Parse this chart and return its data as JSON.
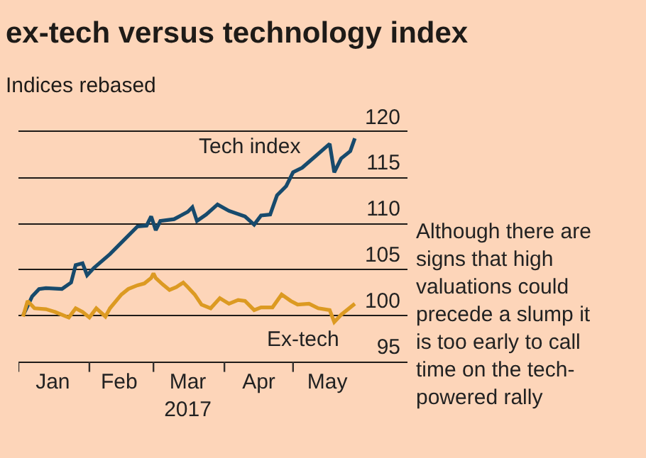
{
  "chart_data": {
    "type": "line",
    "title": "ex-tech versus technology index",
    "subtitle": "Indices rebased",
    "annotations": [
      "Although there are signs that high valuations could precede a slump it is too early to call time on the tech-powered rally"
    ],
    "xlim": [
      "2017-01-01",
      "2017-06-20"
    ],
    "xticks": [
      {
        "value": "2017-01-01",
        "label": null
      },
      {
        "value": "2017-01-16",
        "label": "Jan"
      },
      {
        "value": "2017-02-01",
        "label": null
      },
      {
        "value": "2017-02-14",
        "label": "Feb"
      },
      {
        "value": "2017-03-01",
        "label": null
      },
      {
        "value": "2017-03-16",
        "label": "Mar\n2017"
      },
      {
        "value": "2017-04-01",
        "label": null
      },
      {
        "value": "2017-04-16",
        "label": "Apr"
      },
      {
        "value": "2017-05-01",
        "label": null
      },
      {
        "value": "2017-05-16",
        "label": "May"
      }
    ],
    "ylim": [
      95,
      120
    ],
    "yticks": [
      95,
      100,
      105,
      110,
      115,
      120
    ],
    "grid": "y",
    "legend": false,
    "marker": "none",
    "line_style": "solid",
    "series": [
      {
        "name": "Tech index",
        "color": "#174a6c",
        "x": [
          "2017-01-03",
          "2017-01-07",
          "2017-01-10",
          "2017-01-13",
          "2017-01-20",
          "2017-01-24",
          "2017-01-26",
          "2017-01-29",
          "2017-01-31",
          "2017-02-03",
          "2017-02-10",
          "2017-02-16",
          "2017-02-22",
          "2017-02-26",
          "2017-02-28",
          "2017-03-02",
          "2017-03-04",
          "2017-03-10",
          "2017-03-16",
          "2017-03-18",
          "2017-03-20",
          "2017-03-24",
          "2017-03-29",
          "2017-04-03",
          "2017-04-10",
          "2017-04-14",
          "2017-04-17",
          "2017-04-21",
          "2017-04-24",
          "2017-04-28",
          "2017-05-01",
          "2017-05-05",
          "2017-05-11",
          "2017-05-17",
          "2017-05-19",
          "2017-05-22",
          "2017-05-26",
          "2017-05-28"
        ],
        "values": [
          100,
          102.1,
          102.9,
          103,
          102.9,
          103.6,
          105.5,
          105.7,
          104.4,
          105.2,
          106.7,
          108.2,
          109.7,
          109.8,
          110.8,
          109.3,
          110.3,
          110.5,
          111.3,
          111.8,
          110.3,
          111,
          112.1,
          111.4,
          110.8,
          109.9,
          110.9,
          111,
          113.1,
          114.1,
          115.6,
          116.1,
          117.4,
          118.7,
          115.6,
          117.1,
          117.9,
          119.3
        ]
      },
      {
        "name": "Ex-tech",
        "color": "#dc9a22",
        "x": [
          "2017-01-03",
          "2017-01-05",
          "2017-01-08",
          "2017-01-13",
          "2017-01-17",
          "2017-01-23",
          "2017-01-26",
          "2017-01-29",
          "2017-02-01",
          "2017-02-04",
          "2017-02-08",
          "2017-02-10",
          "2017-02-15",
          "2017-02-18",
          "2017-02-22",
          "2017-02-25",
          "2017-02-28",
          "2017-03-01",
          "2017-03-02",
          "2017-03-05",
          "2017-03-08",
          "2017-03-11",
          "2017-03-14",
          "2017-03-16",
          "2017-03-19",
          "2017-03-22",
          "2017-03-26",
          "2017-03-30",
          "2017-04-03",
          "2017-04-07",
          "2017-04-10",
          "2017-04-14",
          "2017-04-17",
          "2017-04-22",
          "2017-04-26",
          "2017-04-30",
          "2017-05-03",
          "2017-05-08",
          "2017-05-12",
          "2017-05-17",
          "2017-05-19",
          "2017-05-22",
          "2017-05-28"
        ],
        "values": [
          99.9,
          101.6,
          100.8,
          100.7,
          100.4,
          99.8,
          100.8,
          100.4,
          99.8,
          100.8,
          99.9,
          100.8,
          102.3,
          102.9,
          103.3,
          103.5,
          104.1,
          104.6,
          104.1,
          103.4,
          102.8,
          103.1,
          103.6,
          103.1,
          102.3,
          101.2,
          100.8,
          101.9,
          101.3,
          101.7,
          101.6,
          100.6,
          100.9,
          100.9,
          102.3,
          101.6,
          101.2,
          101.3,
          100.8,
          100.6,
          99.3,
          100.1,
          101.3
        ]
      }
    ]
  }
}
